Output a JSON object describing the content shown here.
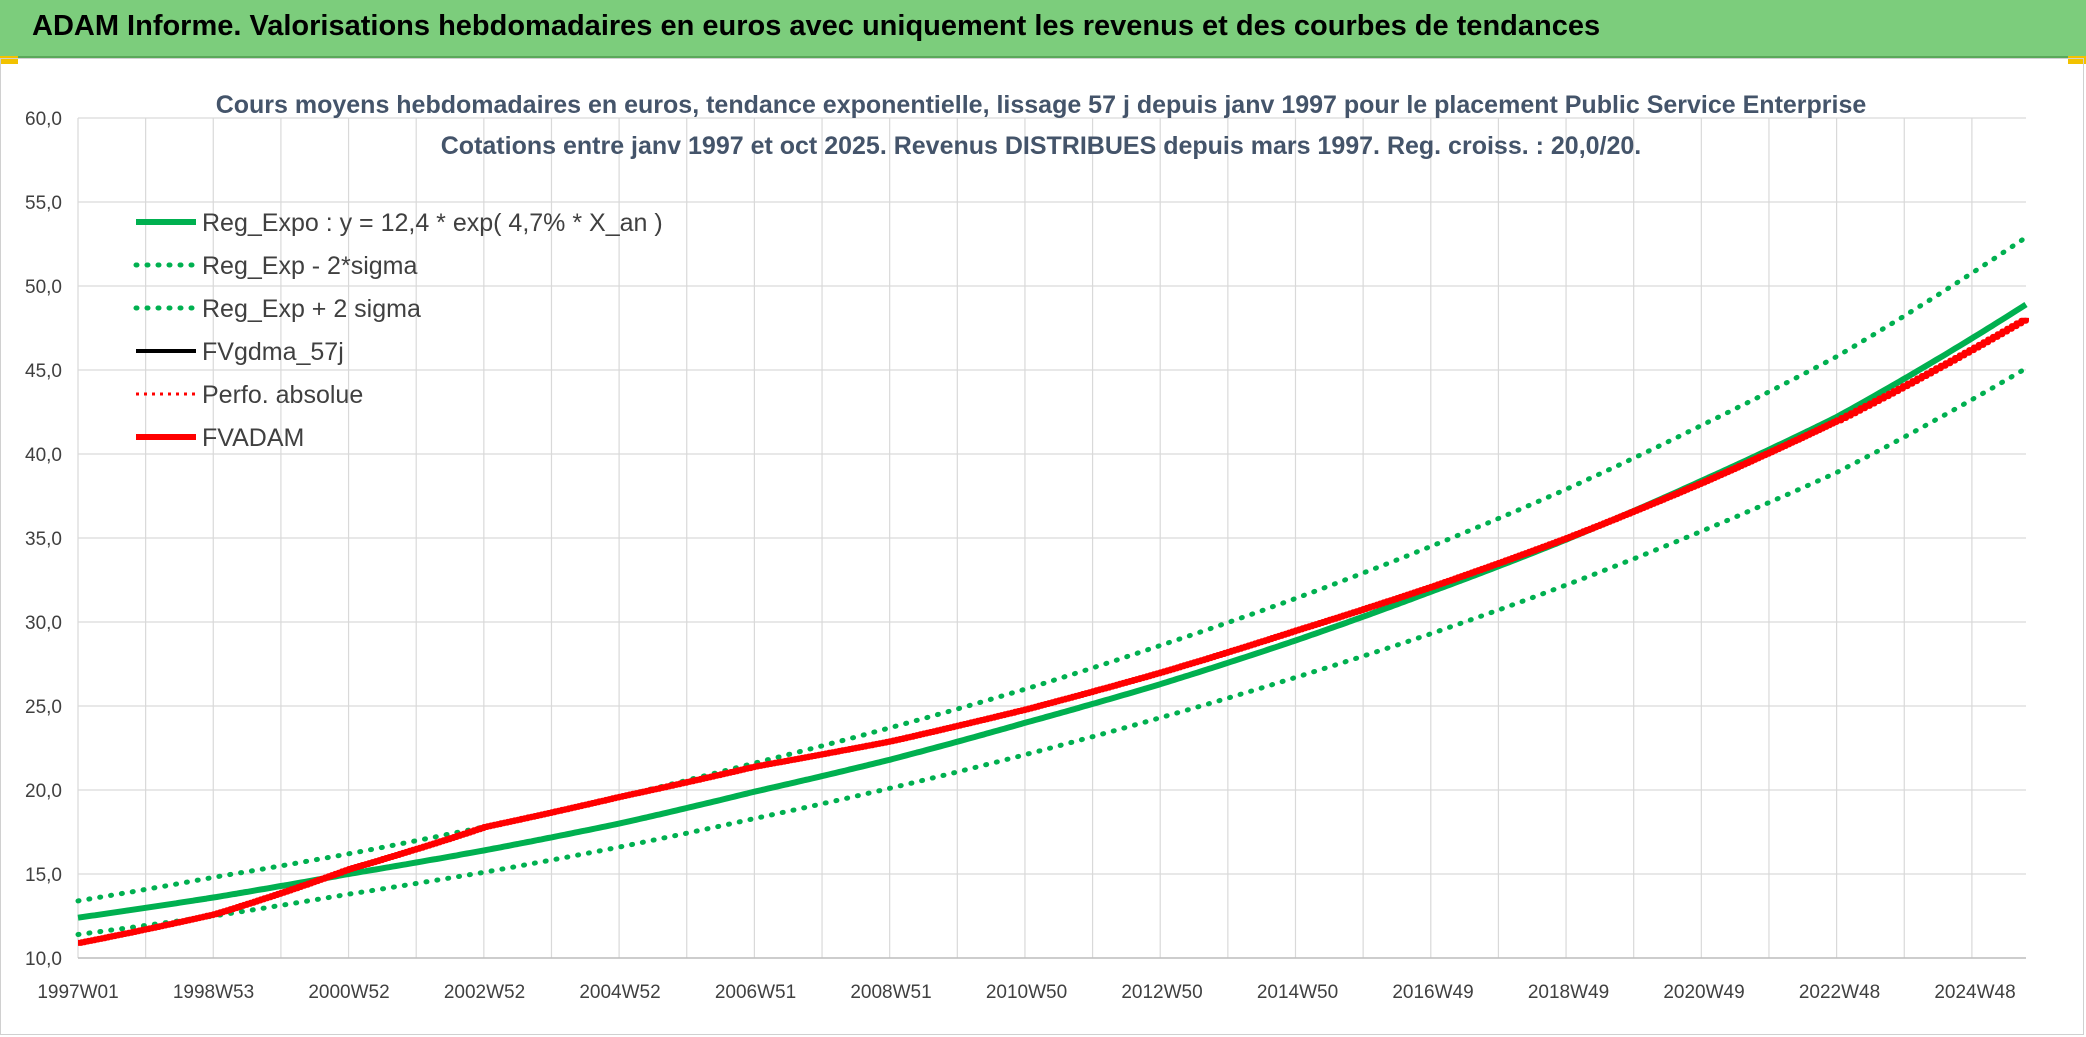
{
  "header": {
    "title": "ADAM Informe. Valorisations hebdomadaires en euros avec uniquement les revenus et des courbes de tendances"
  },
  "colors": {
    "header_bg": "#7ccd7c",
    "green": "#00b050",
    "red": "#ff0000",
    "black": "#000000",
    "grid": "#d9d9d9"
  },
  "chart_data": {
    "type": "line",
    "title_line1": "Cours moyens hebdomadaires en euros, tendance exponentielle, lissage 57 j depuis janv 1997 pour le placement Public Service  Enterprise",
    "title_line2": "Cotations entre janv 1997 et oct 2025. Revenus DISTRIBUES depuis mars 1997. Reg. croiss. : 20,0/20.",
    "ylim": [
      10,
      60
    ],
    "y_ticks": [
      "10,0",
      "15,0",
      "20,0",
      "25,0",
      "30,0",
      "35,0",
      "40,0",
      "45,0",
      "50,0",
      "55,0",
      "60,0"
    ],
    "x_tick_labels": [
      "1997W01",
      "1998W53",
      "2000W52",
      "2002W52",
      "2004W52",
      "2006W51",
      "2008W51",
      "2010W50",
      "2012W50",
      "2014W50",
      "2016W49",
      "2018W49",
      "2020W49",
      "2022W48",
      "2024W48"
    ],
    "x_range_years": [
      1997.0,
      2025.8
    ],
    "grid": true,
    "legend_position": "top-left",
    "legend": [
      "Reg_Expo : y = 12,4 * exp( 4,7% *  X_an )",
      "Reg_Exp - 2*sigma",
      "Reg_Exp + 2 sigma",
      "FVgdma_57j",
      "Perfo. absolue",
      "FVADAM"
    ],
    "series": [
      {
        "name": "Reg_Expo : y = 12,4 * exp( 4,7% *  X_an )",
        "color": "#00b050",
        "style": "solid",
        "x": [
          1997,
          1999,
          2001,
          2003,
          2005,
          2007,
          2009,
          2011,
          2013,
          2015,
          2017,
          2019,
          2021,
          2023,
          2025.8
        ],
        "y": [
          12.4,
          13.6,
          15.0,
          16.4,
          18.0,
          19.9,
          21.8,
          24.0,
          26.3,
          28.9,
          31.8,
          34.9,
          38.4,
          42.2,
          48.9
        ]
      },
      {
        "name": "Reg_Exp - 2*sigma",
        "color": "#00b050",
        "style": "dotted",
        "x": [
          1997,
          1999,
          2001,
          2003,
          2005,
          2007,
          2009,
          2011,
          2013,
          2015,
          2017,
          2019,
          2021,
          2023,
          2025.8
        ],
        "y": [
          11.4,
          12.5,
          13.8,
          15.1,
          16.6,
          18.3,
          20.1,
          22.1,
          24.3,
          26.7,
          29.3,
          32.2,
          35.4,
          38.9,
          45.1
        ]
      },
      {
        "name": "Reg_Exp + 2 sigma",
        "color": "#00b050",
        "style": "dotted",
        "x": [
          1997,
          1999,
          2001,
          2003,
          2005,
          2007,
          2009,
          2011,
          2013,
          2015,
          2017,
          2019,
          2021,
          2023,
          2025.8
        ],
        "y": [
          13.4,
          14.8,
          16.2,
          17.8,
          19.6,
          21.6,
          23.7,
          26.0,
          28.6,
          31.4,
          34.5,
          37.9,
          41.7,
          45.8,
          52.9
        ]
      },
      {
        "name": "FVgdma_57j",
        "color": "#000000",
        "style": "solid",
        "x": [
          1997,
          1999,
          2001,
          2003,
          2005,
          2007,
          2009,
          2011,
          2013,
          2015,
          2017,
          2019,
          2021,
          2023,
          2025.8
        ],
        "y": [
          10.9,
          12.6,
          15.3,
          17.8,
          19.6,
          21.4,
          22.9,
          24.8,
          27.0,
          29.5,
          32.1,
          35.0,
          38.3,
          42.0,
          48.1
        ]
      },
      {
        "name": "Perfo. absolue",
        "color": "#ff0000",
        "style": "dotted",
        "x": [
          1997,
          1999,
          2001,
          2003,
          2005,
          2007,
          2009,
          2011,
          2013,
          2015,
          2017,
          2019,
          2021,
          2023,
          2025.8
        ],
        "y": [
          10.9,
          12.6,
          15.3,
          17.8,
          19.6,
          21.4,
          22.9,
          24.8,
          27.0,
          29.5,
          32.1,
          35.0,
          38.3,
          42.0,
          48.1
        ]
      },
      {
        "name": "FVADAM",
        "color": "#ff0000",
        "style": "solid",
        "x": [
          1997,
          1999,
          2001,
          2003,
          2005,
          2007,
          2009,
          2011,
          2013,
          2015,
          2017,
          2019,
          2021,
          2023,
          2025.8
        ],
        "y": [
          10.9,
          12.6,
          15.3,
          17.8,
          19.6,
          21.4,
          22.9,
          24.8,
          27.0,
          29.5,
          32.1,
          35.0,
          38.3,
          42.0,
          48.1
        ]
      }
    ]
  }
}
